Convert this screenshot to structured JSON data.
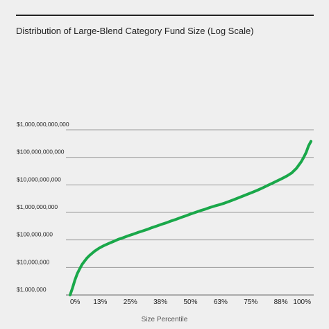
{
  "chart_data": {
    "type": "line",
    "title": "Distribution of Large-Blend Category Fund Size (Log Scale)",
    "xlabel": "Size Percentile",
    "ylabel": "",
    "x_tick_labels": [
      "0%",
      "13%",
      "25%",
      "38%",
      "50%",
      "63%",
      "75%",
      "88%",
      "100%"
    ],
    "x_tick_values": [
      0,
      12.5,
      25,
      37.5,
      50,
      62.5,
      75,
      87.5,
      100
    ],
    "xlim": [
      0,
      100
    ],
    "y_scale": "log",
    "y_tick_labels": [
      "$1,000,000",
      "$10,000,000",
      "$100,000,000",
      "$1,000,000,000",
      "$10,000,000,000",
      "$100,000,000,000",
      "$1,000,000,000,000"
    ],
    "y_tick_values": [
      1000000,
      10000000,
      100000000,
      1000000000,
      10000000000,
      100000000000,
      1000000000000
    ],
    "ylim": [
      1000000,
      1000000000000
    ],
    "grid": true,
    "line_color": "#1aa84a",
    "series": [
      {
        "x": [
          0,
          1,
          2,
          3,
          4,
          5,
          6,
          7,
          8,
          10,
          12,
          14,
          16,
          18,
          20,
          22,
          24,
          26,
          28,
          30,
          32,
          34,
          36,
          38,
          40,
          42,
          44,
          46,
          48,
          50,
          52,
          54,
          56,
          58,
          60,
          62,
          64,
          66,
          68,
          70,
          72,
          74,
          76,
          78,
          80,
          82,
          84,
          86,
          88,
          90,
          92,
          94,
          96,
          97,
          98,
          99,
          100
        ],
        "y": [
          1000000,
          1800000,
          3500000,
          6000000,
          9000000,
          13000000,
          17000000,
          22000000,
          27000000,
          38000000,
          50000000,
          62000000,
          74000000,
          88000000,
          105000000,
          120000000,
          140000000,
          160000000,
          185000000,
          210000000,
          240000000,
          280000000,
          320000000,
          370000000,
          420000000,
          490000000,
          560000000,
          650000000,
          750000000,
          870000000,
          1000000000,
          1150000000,
          1300000000,
          1500000000,
          1700000000,
          1900000000,
          2150000000,
          2500000000,
          2900000000,
          3400000000,
          4000000000,
          4700000000,
          5500000000,
          6500000000,
          7800000000,
          9500000000,
          11500000000,
          14000000000,
          17000000000,
          21000000000,
          27000000000,
          40000000000,
          70000000000,
          100000000000,
          150000000000,
          260000000000,
          380000000000
        ]
      }
    ]
  }
}
